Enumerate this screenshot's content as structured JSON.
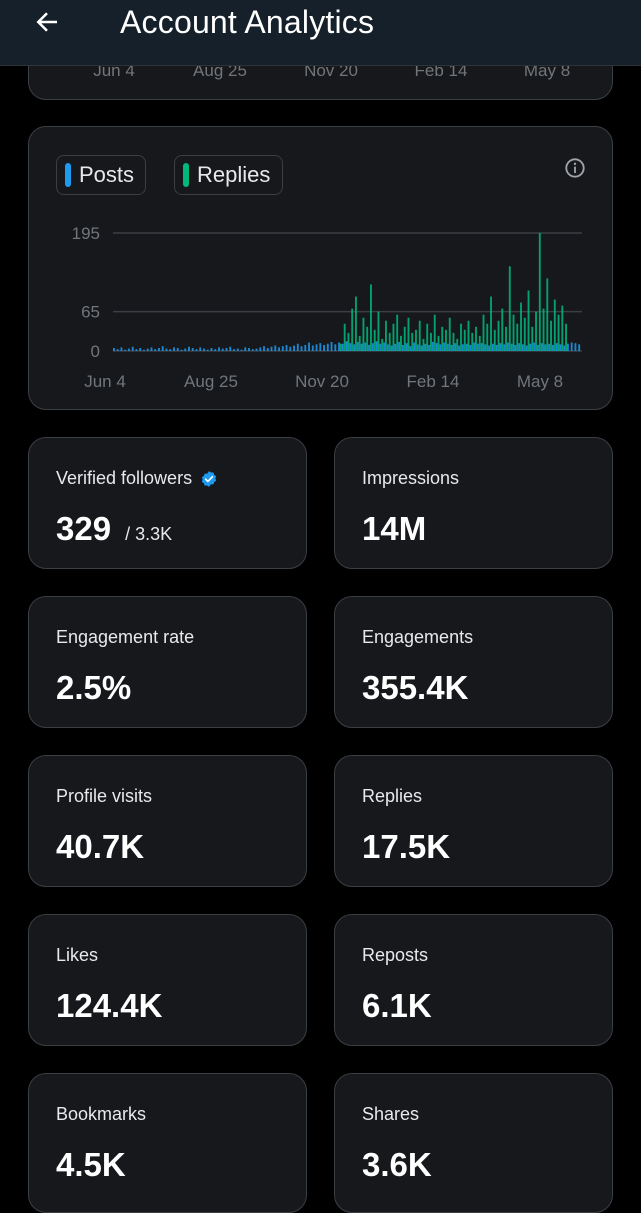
{
  "header": {
    "title": "Account Analytics"
  },
  "top_card": {
    "ticks": [
      "Jun 4",
      "Aug 25",
      "Nov 20",
      "Feb 14",
      "May 8"
    ]
  },
  "legend": {
    "posts": "Posts",
    "replies": "Replies"
  },
  "colors": {
    "posts": "#1d9bf0",
    "replies": "#00ba7c",
    "verified": "#1d9bf0"
  },
  "chart_data": {
    "type": "bar",
    "title": "",
    "xlabel": "",
    "ylabel": "",
    "ylim": [
      0,
      205
    ],
    "y_ticks": [
      0,
      65,
      195
    ],
    "x_ticks": [
      "Jun 4",
      "Aug 25",
      "Nov 20",
      "Feb 14",
      "May 8"
    ],
    "series": [
      {
        "name": "Posts",
        "values": [
          5,
          3,
          6,
          2,
          4,
          7,
          3,
          5,
          2,
          4,
          6,
          3,
          5,
          8,
          4,
          3,
          6,
          5,
          2,
          4,
          7,
          5,
          3,
          6,
          4,
          2,
          5,
          3,
          6,
          4,
          5,
          7,
          3,
          4,
          2,
          6,
          5,
          3,
          4,
          6,
          8,
          5,
          7,
          9,
          6,
          8,
          10,
          7,
          9,
          12,
          8,
          10,
          14,
          9,
          11,
          13,
          10,
          12,
          15,
          11,
          14,
          12,
          16,
          13,
          11,
          15,
          12,
          14,
          10,
          13,
          16,
          12,
          14,
          11,
          9,
          12,
          15,
          10,
          13,
          8,
          14,
          11,
          9,
          12,
          10,
          15,
          13,
          11,
          14,
          12,
          10,
          13,
          9,
          11,
          12,
          10,
          14,
          12,
          13,
          11,
          9,
          12,
          10,
          13,
          11,
          14,
          12,
          10,
          13,
          11,
          9,
          12,
          14,
          10,
          13,
          11,
          12,
          10,
          13,
          11,
          9,
          12,
          14,
          13,
          11
        ]
      },
      {
        "name": "Replies",
        "values": [
          0,
          0,
          0,
          0,
          0,
          0,
          0,
          0,
          0,
          0,
          0,
          0,
          0,
          0,
          0,
          0,
          0,
          0,
          0,
          0,
          0,
          0,
          0,
          0,
          0,
          0,
          0,
          0,
          0,
          0,
          0,
          0,
          0,
          0,
          0,
          0,
          0,
          0,
          0,
          0,
          0,
          0,
          0,
          0,
          0,
          0,
          0,
          0,
          0,
          0,
          0,
          0,
          0,
          0,
          0,
          0,
          0,
          0,
          0,
          0,
          12,
          45,
          30,
          70,
          90,
          25,
          55,
          40,
          110,
          35,
          65,
          20,
          50,
          30,
          45,
          60,
          25,
          40,
          55,
          30,
          35,
          50,
          20,
          45,
          30,
          60,
          25,
          40,
          35,
          55,
          30,
          20,
          45,
          35,
          50,
          30,
          40,
          25,
          60,
          45,
          90,
          35,
          50,
          70,
          40,
          140,
          60,
          45,
          80,
          55,
          100,
          40,
          65,
          195,
          70,
          120,
          50,
          85,
          60,
          75,
          45
        ]
      }
    ]
  },
  "stats": [
    {
      "label": "Verified followers",
      "value": "329",
      "sub": "/ 3.3K"
    },
    {
      "label": "Impressions",
      "value": "14M"
    },
    {
      "label": "Engagement rate",
      "value": "2.5%"
    },
    {
      "label": "Engagements",
      "value": "355.4K"
    },
    {
      "label": "Profile visits",
      "value": "40.7K"
    },
    {
      "label": "Replies",
      "value": "17.5K"
    },
    {
      "label": "Likes",
      "value": "124.4K"
    },
    {
      "label": "Reposts",
      "value": "6.1K"
    },
    {
      "label": "Bookmarks",
      "value": "4.5K"
    },
    {
      "label": "Shares",
      "value": "3.6K"
    }
  ]
}
